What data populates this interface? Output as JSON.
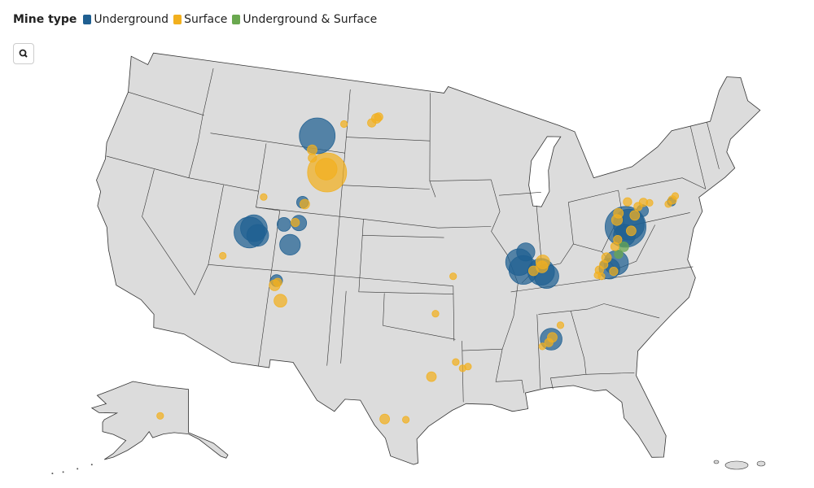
{
  "legend": {
    "title": "Mine type",
    "items": [
      {
        "label": "Underground",
        "color": "#1f5f91"
      },
      {
        "label": "Surface",
        "color": "#f2b01e"
      },
      {
        "label": "Underground & Surface",
        "color": "#6aa84f"
      }
    ]
  },
  "mines": [
    {
      "lon": -105.4,
      "lat": 43.7,
      "type": "Surface",
      "size": 64
    },
    {
      "lon": -80.4,
      "lat": 39.7,
      "type": "Underground",
      "size": 70
    },
    {
      "lon": -106.6,
      "lat": 45.9,
      "type": "Underground",
      "size": 54
    },
    {
      "lon": -111.2,
      "lat": 39.4,
      "type": "Underground",
      "size": 40
    },
    {
      "lon": -80.1,
      "lat": 39.8,
      "type": "Underground",
      "size": 40
    },
    {
      "lon": -89.0,
      "lat": 37.8,
      "type": "Underground",
      "size": 35
    },
    {
      "lon": -110.9,
      "lat": 39.7,
      "type": "Underground",
      "size": 30
    },
    {
      "lon": -89.3,
      "lat": 38.3,
      "type": "Underground",
      "size": 30
    },
    {
      "lon": -87.6,
      "lat": 37.6,
      "type": "Underground",
      "size": 30
    },
    {
      "lon": -87.2,
      "lat": 37.3,
      "type": "Underground",
      "size": 25
    },
    {
      "lon": -81.6,
      "lat": 37.6,
      "type": "Underground",
      "size": 25
    },
    {
      "lon": -105.5,
      "lat": 43.9,
      "type": "Surface",
      "size": 20
    },
    {
      "lon": -110.5,
      "lat": 39.3,
      "type": "Underground",
      "size": 20
    },
    {
      "lon": -80.6,
      "lat": 39.2,
      "type": "Underground",
      "size": 20
    },
    {
      "lon": -87.3,
      "lat": 33.4,
      "type": "Underground",
      "size": 20
    },
    {
      "lon": -107.8,
      "lat": 39.0,
      "type": "Underground",
      "size": 18
    },
    {
      "lon": -82.2,
      "lat": 37.3,
      "type": "Underground",
      "size": 18
    },
    {
      "lon": -88.7,
      "lat": 38.9,
      "type": "Underground",
      "size": 14
    },
    {
      "lon": -107.3,
      "lat": 40.4,
      "type": "Underground",
      "size": 10
    },
    {
      "lon": -108.5,
      "lat": 40.2,
      "type": "Underground",
      "size": 8
    },
    {
      "lon": -87.4,
      "lat": 38.2,
      "type": "Surface",
      "size": 8
    },
    {
      "lon": -108.0,
      "lat": 35.5,
      "type": "Surface",
      "size": 7
    },
    {
      "lon": -107.2,
      "lat": 41.7,
      "type": "Underground",
      "size": 6
    },
    {
      "lon": -108.5,
      "lat": 36.7,
      "type": "Underground",
      "size": 6
    },
    {
      "lon": -78.8,
      "lat": 40.5,
      "type": "Underground",
      "size": 6
    },
    {
      "lon": -87.5,
      "lat": 37.9,
      "type": "Surface",
      "size": 6
    },
    {
      "lon": -108.6,
      "lat": 36.4,
      "type": "Surface",
      "size": 5
    },
    {
      "lon": -101.4,
      "lat": 47.3,
      "type": "Surface",
      "size": 4
    },
    {
      "lon": -106.9,
      "lat": 45.0,
      "type": "Surface",
      "size": 4
    },
    {
      "lon": -107.0,
      "lat": 41.6,
      "type": "Surface",
      "size": 4
    },
    {
      "lon": -96.3,
      "lat": 31.4,
      "type": "Surface",
      "size": 4
    },
    {
      "lon": -99.6,
      "lat": 28.7,
      "type": "Surface",
      "size": 4
    },
    {
      "lon": -88.2,
      "lat": 37.7,
      "type": "Surface",
      "size": 4
    },
    {
      "lon": -87.2,
      "lat": 33.5,
      "type": "Surface",
      "size": 4
    },
    {
      "lon": -80.8,
      "lat": 38.5,
      "type": "Underground & Surface",
      "size": 4
    },
    {
      "lon": -101.8,
      "lat": 47.0,
      "type": "Surface",
      "size": 3
    },
    {
      "lon": -101.2,
      "lat": 47.4,
      "type": "Surface",
      "size": 3
    },
    {
      "lon": -106.8,
      "lat": 44.5,
      "type": "Surface",
      "size": 3
    },
    {
      "lon": -107.6,
      "lat": 40.4,
      "type": "Surface",
      "size": 3
    },
    {
      "lon": -108.4,
      "lat": 36.6,
      "type": "Surface",
      "size": 3
    },
    {
      "lon": -87.5,
      "lat": 33.2,
      "type": "Surface",
      "size": 3
    },
    {
      "lon": -76.3,
      "lat": 40.7,
      "type": "Underground",
      "size": 3
    },
    {
      "lon": -81.3,
      "lat": 38.1,
      "type": "Underground & Surface",
      "size": 3
    },
    {
      "lon": -81.0,
      "lat": 40.2,
      "type": "Surface",
      "size": 5
    },
    {
      "lon": -80.8,
      "lat": 40.6,
      "type": "Surface",
      "size": 4
    },
    {
      "lon": -79.5,
      "lat": 40.3,
      "type": "Surface",
      "size": 4
    },
    {
      "lon": -79.1,
      "lat": 40.8,
      "type": "Surface",
      "size": 3
    },
    {
      "lon": -78.6,
      "lat": 41.0,
      "type": "Surface",
      "size": 3
    },
    {
      "lon": -79.9,
      "lat": 41.2,
      "type": "Surface",
      "size": 3
    },
    {
      "lon": -80.0,
      "lat": 39.4,
      "type": "Surface",
      "size": 4
    },
    {
      "lon": -81.2,
      "lat": 39.0,
      "type": "Surface",
      "size": 3
    },
    {
      "lon": -82.3,
      "lat": 38.0,
      "type": "Surface",
      "size": 4
    },
    {
      "lon": -82.6,
      "lat": 37.6,
      "type": "Surface",
      "size": 3
    },
    {
      "lon": -83.0,
      "lat": 37.3,
      "type": "Surface",
      "size": 3
    },
    {
      "lon": -81.9,
      "lat": 37.1,
      "type": "Surface",
      "size": 3
    },
    {
      "lon": -81.5,
      "lat": 38.6,
      "type": "Surface",
      "size": 3
    },
    {
      "lon": -83.2,
      "lat": 37.0,
      "type": "Surface",
      "size": 2
    },
    {
      "lon": -82.9,
      "lat": 36.9,
      "type": "Surface",
      "size": 2
    },
    {
      "lon": -76.2,
      "lat": 40.8,
      "type": "Surface",
      "size": 3
    },
    {
      "lon": -75.9,
      "lat": 41.0,
      "type": "Surface",
      "size": 2
    },
    {
      "lon": -76.6,
      "lat": 40.6,
      "type": "Surface",
      "size": 2
    },
    {
      "lon": -78.1,
      "lat": 40.9,
      "type": "Surface",
      "size": 2
    },
    {
      "lon": -104.3,
      "lat": 46.8,
      "type": "Surface",
      "size": 2
    },
    {
      "lon": -110.5,
      "lat": 41.7,
      "type": "Surface",
      "size": 2
    },
    {
      "lon": -113.0,
      "lat": 37.7,
      "type": "Surface",
      "size": 2
    },
    {
      "lon": -96.0,
      "lat": 35.3,
      "type": "Surface",
      "size": 2
    },
    {
      "lon": -94.6,
      "lat": 37.6,
      "type": "Surface",
      "size": 2
    },
    {
      "lon": -94.5,
      "lat": 32.3,
      "type": "Surface",
      "size": 2
    },
    {
      "lon": -94.0,
      "lat": 31.9,
      "type": "Surface",
      "size": 2
    },
    {
      "lon": -93.6,
      "lat": 32.0,
      "type": "Surface",
      "size": 2
    },
    {
      "lon": -98.1,
      "lat": 28.7,
      "type": "Surface",
      "size": 2
    },
    {
      "lon": -86.5,
      "lat": 34.2,
      "type": "Surface",
      "size": 2
    },
    {
      "lon": -88.0,
      "lat": 33.0,
      "type": "Surface",
      "size": 2
    },
    {
      "lon": -148.9,
      "lat": 63.9,
      "type": "Surface",
      "size": 2
    }
  ]
}
